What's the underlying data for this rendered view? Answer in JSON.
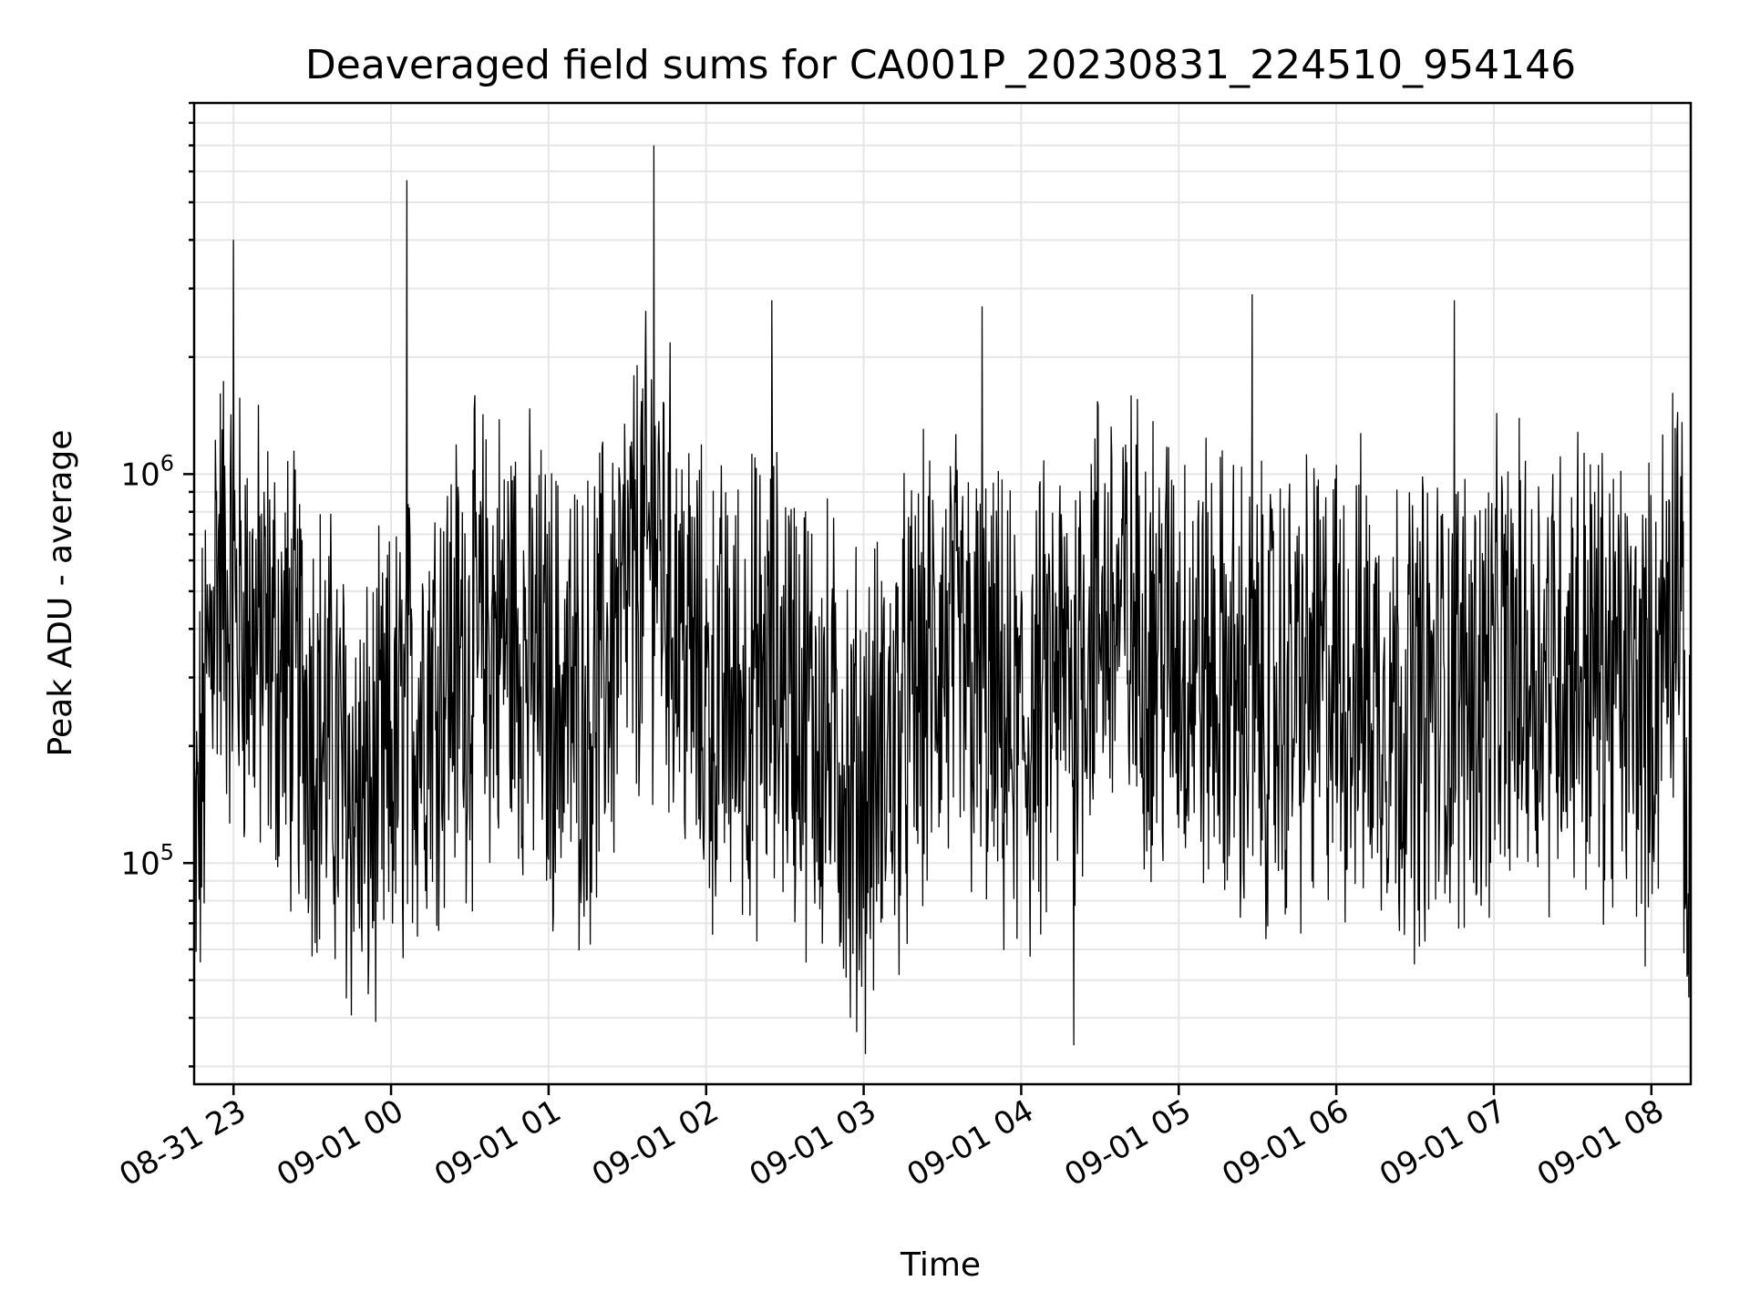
{
  "chart_data": {
    "type": "line",
    "title": "Deaveraged field sums for CA001P_20230831_224510_954146",
    "xlabel": "Time",
    "ylabel": "Peak ADU - average",
    "yscale": "log",
    "xlim": [
      "2023-08-31 22:45",
      "2023-09-01 08:15"
    ],
    "ylim": [
      27000,
      9000000
    ],
    "x_ticks": [
      "08-31 23",
      "09-01 00",
      "09-01 01",
      "09-01 02",
      "09-01 03",
      "09-01 04",
      "09-01 05",
      "09-01 06",
      "09-01 07",
      "09-01 08"
    ],
    "y_ticks": [
      {
        "value": 100000,
        "base": "10",
        "exp": "5"
      },
      {
        "value": 1000000,
        "base": "10",
        "exp": "6"
      }
    ],
    "grid": true,
    "legend": "none",
    "series_color": "#000000",
    "series_points": 2400,
    "series_anchor": [
      [
        "2023-08-31 22:45",
        80000
      ],
      [
        "2023-08-31 22:53",
        600000
      ],
      [
        "2023-08-31 23:00",
        450000
      ],
      [
        "2023-08-31 23:30",
        250000
      ],
      [
        "2023-08-31 23:50",
        130000
      ],
      [
        "2023-09-01 00:15",
        300000
      ],
      [
        "2023-09-01 00:45",
        400000
      ],
      [
        "2023-09-01 01:00",
        280000
      ],
      [
        "2023-09-01 01:15",
        250000
      ],
      [
        "2023-09-01 01:40",
        700000
      ],
      [
        "2023-09-01 02:00",
        250000
      ],
      [
        "2023-09-01 02:30",
        300000
      ],
      [
        "2023-09-01 03:00",
        150000
      ],
      [
        "2023-09-01 03:30",
        350000
      ],
      [
        "2023-09-01 04:00",
        200000
      ],
      [
        "2023-09-01 04:30",
        450000
      ],
      [
        "2023-09-01 05:00",
        350000
      ],
      [
        "2023-09-01 05:30",
        250000
      ],
      [
        "2023-09-01 06:00",
        300000
      ],
      [
        "2023-09-01 06:30",
        250000
      ],
      [
        "2023-09-01 07:00",
        300000
      ],
      [
        "2023-09-01 07:30",
        350000
      ],
      [
        "2023-09-01 08:00",
        250000
      ],
      [
        "2023-09-01 08:10",
        700000
      ],
      [
        "2023-09-01 08:15",
        60000
      ]
    ],
    "peaks": [
      [
        "2023-08-31 23:00",
        4000000
      ],
      [
        "2023-09-01 00:06",
        5700000
      ],
      [
        "2023-09-01 01:40",
        7000000
      ],
      [
        "2023-09-01 02:25",
        2800000
      ],
      [
        "2023-09-01 03:45",
        2700000
      ],
      [
        "2023-09-01 05:28",
        2900000
      ],
      [
        "2023-09-01 06:45",
        2800000
      ],
      [
        "2023-09-01 04:20",
        34000
      ],
      [
        "2023-09-01 02:55",
        40000
      ]
    ]
  }
}
